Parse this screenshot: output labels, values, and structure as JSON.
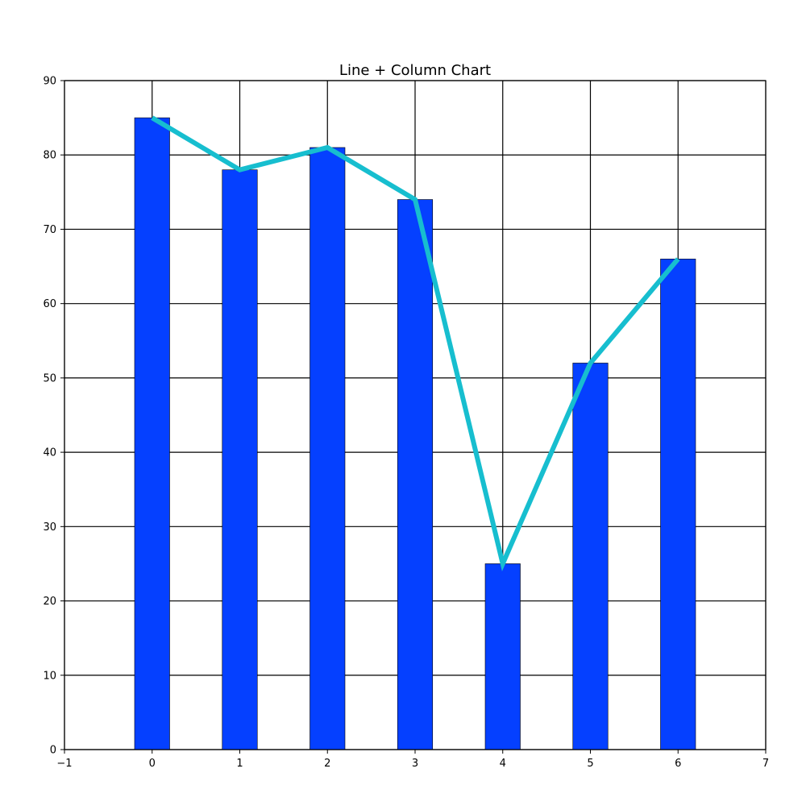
{
  "chart_data": {
    "type": "bar",
    "title": "Line + Column Chart",
    "xlabel": "",
    "ylabel": "",
    "x": [
      0,
      1,
      2,
      3,
      4,
      5,
      6
    ],
    "xlim": [
      -1,
      7
    ],
    "ylim": [
      0,
      90
    ],
    "xticks": [
      -1,
      0,
      1,
      2,
      3,
      4,
      5,
      6,
      7
    ],
    "xtick_labels": [
      "−1",
      "0",
      "1",
      "2",
      "3",
      "4",
      "5",
      "6",
      "7"
    ],
    "yticks": [
      0,
      10,
      20,
      30,
      40,
      50,
      60,
      70,
      80,
      90
    ],
    "ytick_labels": [
      "0",
      "10",
      "20",
      "30",
      "40",
      "50",
      "60",
      "70",
      "80",
      "90"
    ],
    "grid": true,
    "legend": "none",
    "series": [
      {
        "type": "bar",
        "values": [
          85,
          78,
          81,
          74,
          25,
          52,
          66
        ],
        "color": "#0540ff"
      },
      {
        "type": "line",
        "values": [
          85,
          78,
          81,
          74,
          25,
          52,
          66
        ],
        "color": "#17becf"
      }
    ]
  }
}
